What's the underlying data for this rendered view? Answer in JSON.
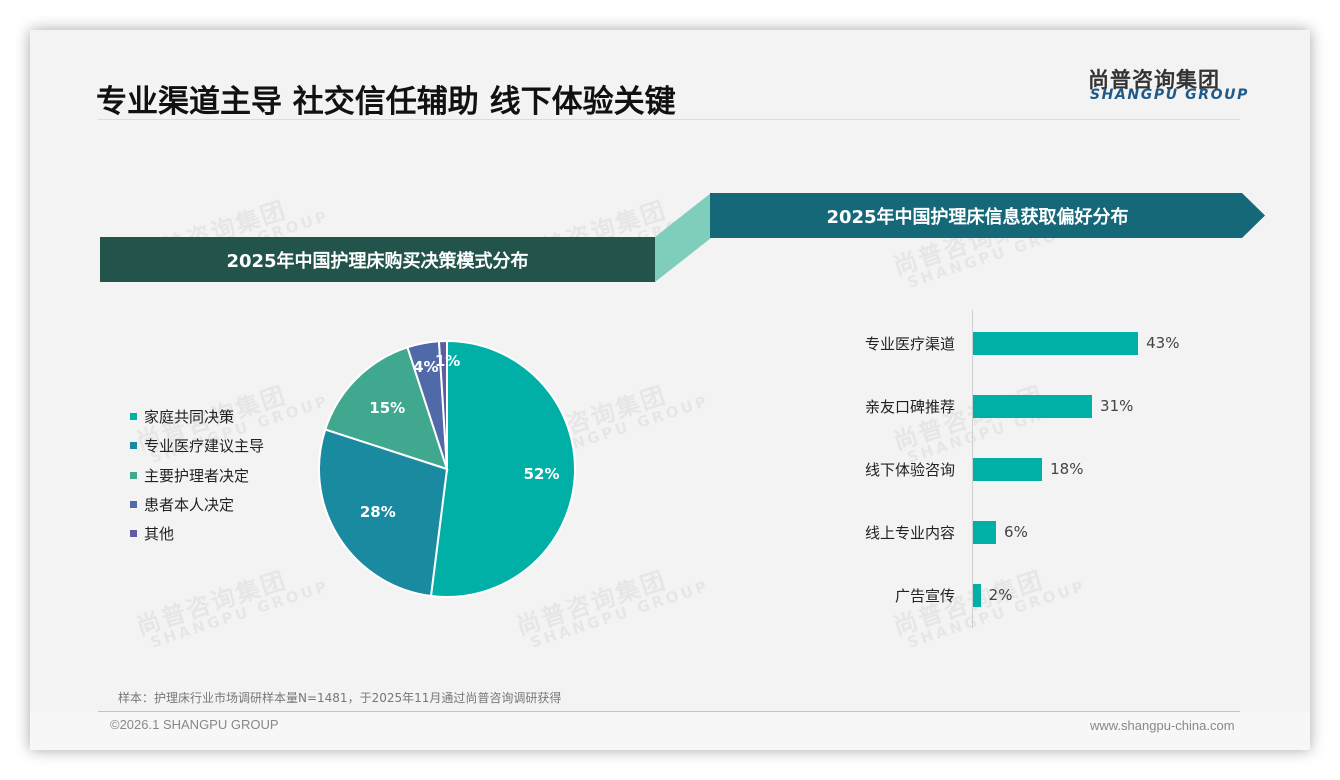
{
  "header": {
    "title": "专业渠道主导 社交信任辅助 线下体验关键",
    "logo_cn": "尚普咨询集团",
    "logo_en": "SHANGPU GROUP"
  },
  "watermark": {
    "cn": "尚普咨询集团",
    "en": "SHANGPU GROUP"
  },
  "colors": {
    "banner_left": "#22544B",
    "banner_right": "#146878",
    "connector": "#7FCDBB",
    "bar": "#00B0A6",
    "pie": [
      "#00B0A6",
      "#1A8AA0",
      "#40A88F",
      "#5069A8",
      "#5E5DA0"
    ]
  },
  "left_panel": {
    "banner": "2025年中国护理床购买决策模式分布"
  },
  "right_panel": {
    "banner": "2025年中国护理床信息获取偏好分布"
  },
  "chart_data": [
    {
      "type": "pie",
      "title": "2025年中国护理床购买决策模式分布",
      "categories": [
        "家庭共同决策",
        "专业医疗建议主导",
        "主要护理者决定",
        "患者本人决定",
        "其他"
      ],
      "values": [
        52,
        28,
        15,
        4,
        1
      ],
      "labels": [
        "52%",
        "28%",
        "15%",
        "4%",
        "1%"
      ],
      "unit": "%",
      "legend_position": "left",
      "start_angle": "12 o'clock, clockwise"
    },
    {
      "type": "bar",
      "orientation": "horizontal",
      "title": "2025年中国护理床信息获取偏好分布",
      "categories": [
        "专业医疗渠道",
        "亲友口碑推荐",
        "线下体验咨询",
        "线上专业内容",
        "广告宣传"
      ],
      "values": [
        43,
        31,
        18,
        6,
        2
      ],
      "labels": [
        "43%",
        "31%",
        "18%",
        "6%",
        "2%"
      ],
      "unit": "%",
      "xlabel": "",
      "ylabel": "",
      "grid": false
    }
  ],
  "footer": {
    "note": "样本：护理床行业市场调研样本量N=1481，于2025年11月通过尚普咨询调研获得",
    "copyright": "©2026.1 SHANGPU GROUP",
    "website": "www.shangpu-china.com"
  }
}
